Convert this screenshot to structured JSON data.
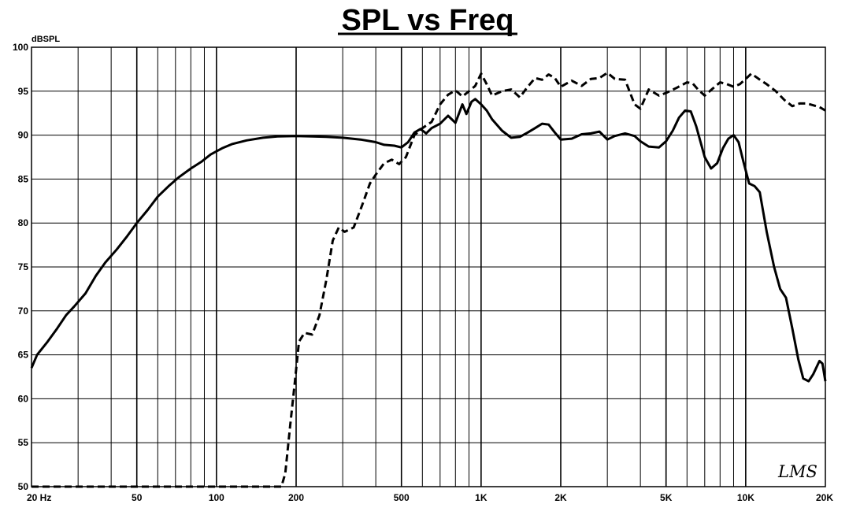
{
  "chart_data": {
    "type": "line",
    "title": "SPL vs Freq",
    "ylabel": "dBSPL",
    "xlabel": "",
    "x_scale": "log",
    "xlim": [
      20,
      20000
    ],
    "ylim": [
      50,
      100
    ],
    "grid": true,
    "y_ticks": [
      50,
      55,
      60,
      65,
      70,
      75,
      80,
      85,
      90,
      95,
      100
    ],
    "x_ticks": [
      {
        "value": 20,
        "label": "20  Hz"
      },
      {
        "value": 50,
        "label": "50"
      },
      {
        "value": 100,
        "label": "100"
      },
      {
        "value": 200,
        "label": "200"
      },
      {
        "value": 500,
        "label": "500"
      },
      {
        "value": 1000,
        "label": "1K"
      },
      {
        "value": 2000,
        "label": "2K"
      },
      {
        "value": 5000,
        "label": "5K"
      },
      {
        "value": 10000,
        "label": "10K"
      },
      {
        "value": 20000,
        "label": "20K"
      }
    ],
    "logo_text": "LMS",
    "series": [
      {
        "style": "solid",
        "color": "#000000",
        "points": [
          [
            20,
            63.5
          ],
          [
            21,
            65
          ],
          [
            23,
            66.5
          ],
          [
            25,
            68
          ],
          [
            27,
            69.5
          ],
          [
            29,
            70.5
          ],
          [
            32,
            72
          ],
          [
            35,
            74
          ],
          [
            38,
            75.5
          ],
          [
            42,
            77
          ],
          [
            46,
            78.5
          ],
          [
            50,
            80
          ],
          [
            55,
            81.5
          ],
          [
            60,
            83
          ],
          [
            66,
            84.2
          ],
          [
            72,
            85.2
          ],
          [
            80,
            86.2
          ],
          [
            88,
            87
          ],
          [
            95,
            87.8
          ],
          [
            105,
            88.5
          ],
          [
            115,
            89
          ],
          [
            130,
            89.4
          ],
          [
            150,
            89.7
          ],
          [
            170,
            89.85
          ],
          [
            200,
            89.9
          ],
          [
            230,
            89.85
          ],
          [
            260,
            89.8
          ],
          [
            300,
            89.7
          ],
          [
            350,
            89.5
          ],
          [
            400,
            89.2
          ],
          [
            430,
            88.9
          ],
          [
            470,
            88.8
          ],
          [
            500,
            88.6
          ],
          [
            530,
            89.2
          ],
          [
            560,
            90.3
          ],
          [
            590,
            90.7
          ],
          [
            620,
            90.2
          ],
          [
            650,
            90.8
          ],
          [
            700,
            91.3
          ],
          [
            750,
            92.2
          ],
          [
            800,
            91.4
          ],
          [
            850,
            93.5
          ],
          [
            880,
            92.4
          ],
          [
            920,
            93.8
          ],
          [
            950,
            94.1
          ],
          [
            1000,
            93.5
          ],
          [
            1050,
            92.8
          ],
          [
            1100,
            91.8
          ],
          [
            1200,
            90.5
          ],
          [
            1300,
            89.7
          ],
          [
            1400,
            89.8
          ],
          [
            1500,
            90.3
          ],
          [
            1600,
            90.8
          ],
          [
            1700,
            91.3
          ],
          [
            1800,
            91.2
          ],
          [
            1900,
            90.3
          ],
          [
            2000,
            89.5
          ],
          [
            2200,
            89.6
          ],
          [
            2400,
            90.1
          ],
          [
            2600,
            90.2
          ],
          [
            2800,
            90.4
          ],
          [
            3000,
            89.5
          ],
          [
            3200,
            89.9
          ],
          [
            3500,
            90.2
          ],
          [
            3800,
            89.9
          ],
          [
            4000,
            89.3
          ],
          [
            4300,
            88.7
          ],
          [
            4700,
            88.6
          ],
          [
            5000,
            89.3
          ],
          [
            5300,
            90.5
          ],
          [
            5600,
            92
          ],
          [
            5900,
            92.8
          ],
          [
            6200,
            92.7
          ],
          [
            6500,
            91
          ],
          [
            7000,
            87.5
          ],
          [
            7400,
            86.2
          ],
          [
            7800,
            86.8
          ],
          [
            8200,
            88.5
          ],
          [
            8600,
            89.6
          ],
          [
            9000,
            90
          ],
          [
            9400,
            89.2
          ],
          [
            9800,
            87
          ],
          [
            10300,
            84.5
          ],
          [
            10800,
            84.2
          ],
          [
            11300,
            83.5
          ],
          [
            12000,
            79
          ],
          [
            12800,
            75
          ],
          [
            13500,
            72.5
          ],
          [
            14200,
            71.5
          ],
          [
            15000,
            68
          ],
          [
            15800,
            64.5
          ],
          [
            16500,
            62.3
          ],
          [
            17300,
            62
          ],
          [
            18000,
            62.8
          ],
          [
            19000,
            64.3
          ],
          [
            19500,
            64
          ],
          [
            20000,
            62
          ]
        ]
      },
      {
        "style": "dashed",
        "color": "#000000",
        "points": [
          [
            20,
            50
          ],
          [
            100,
            50
          ],
          [
            150,
            50
          ],
          [
            176,
            50
          ],
          [
            182,
            51.5
          ],
          [
            190,
            57
          ],
          [
            198,
            62
          ],
          [
            205,
            66.5
          ],
          [
            215,
            67.5
          ],
          [
            230,
            67.3
          ],
          [
            245,
            69.5
          ],
          [
            260,
            73.5
          ],
          [
            275,
            78
          ],
          [
            290,
            79.5
          ],
          [
            305,
            79
          ],
          [
            330,
            79.5
          ],
          [
            355,
            82
          ],
          [
            380,
            84.5
          ],
          [
            400,
            85.5
          ],
          [
            430,
            86.8
          ],
          [
            460,
            87.2
          ],
          [
            490,
            86.7
          ],
          [
            520,
            87.5
          ],
          [
            560,
            90
          ],
          [
            600,
            90.8
          ],
          [
            650,
            91.5
          ],
          [
            700,
            93.5
          ],
          [
            750,
            94.6
          ],
          [
            800,
            95.1
          ],
          [
            850,
            94.4
          ],
          [
            900,
            95
          ],
          [
            950,
            95.6
          ],
          [
            1000,
            97
          ],
          [
            1050,
            95.8
          ],
          [
            1100,
            94.5
          ],
          [
            1200,
            95
          ],
          [
            1300,
            95.2
          ],
          [
            1400,
            94.3
          ],
          [
            1500,
            95.5
          ],
          [
            1600,
            96.5
          ],
          [
            1700,
            96.3
          ],
          [
            1800,
            96.9
          ],
          [
            1900,
            96.5
          ],
          [
            2000,
            95.5
          ],
          [
            2200,
            96.2
          ],
          [
            2400,
            95.6
          ],
          [
            2600,
            96.4
          ],
          [
            2800,
            96.5
          ],
          [
            3000,
            97.1
          ],
          [
            3200,
            96.4
          ],
          [
            3500,
            96.3
          ],
          [
            3800,
            93.5
          ],
          [
            4000,
            93
          ],
          [
            4300,
            95.2
          ],
          [
            4700,
            94.5
          ],
          [
            5000,
            94.8
          ],
          [
            5500,
            95.4
          ],
          [
            6000,
            96
          ],
          [
            6300,
            95.9
          ],
          [
            6600,
            95.2
          ],
          [
            7000,
            94.5
          ],
          [
            7500,
            95.3
          ],
          [
            8000,
            96
          ],
          [
            8500,
            95.8
          ],
          [
            9000,
            95.5
          ],
          [
            9500,
            95.8
          ],
          [
            10000,
            96.4
          ],
          [
            10500,
            97
          ],
          [
            11200,
            96.4
          ],
          [
            12000,
            95.8
          ],
          [
            13000,
            95
          ],
          [
            14000,
            94
          ],
          [
            15000,
            93.3
          ],
          [
            16000,
            93.6
          ],
          [
            17000,
            93.6
          ],
          [
            18000,
            93.4
          ],
          [
            19000,
            93.2
          ],
          [
            20000,
            92.8
          ]
        ]
      }
    ]
  }
}
